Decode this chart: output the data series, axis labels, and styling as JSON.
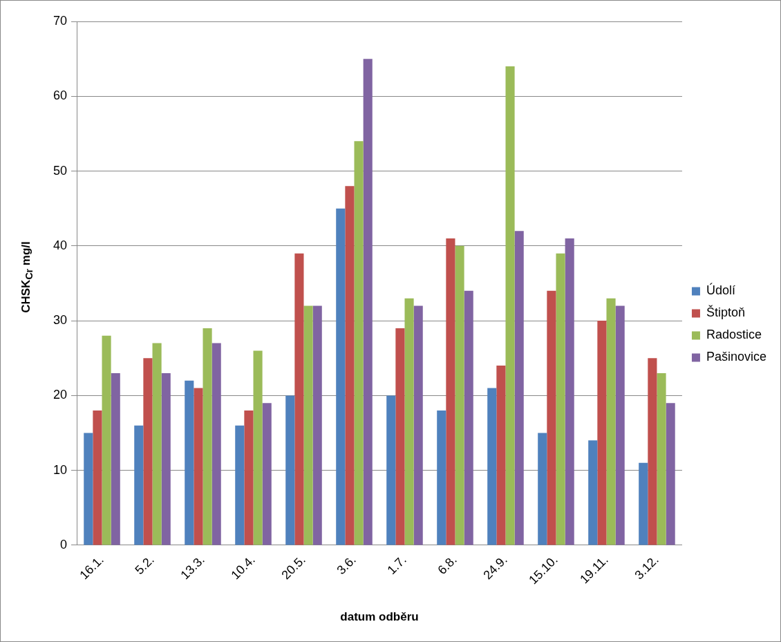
{
  "chart_data": {
    "type": "bar",
    "xlabel": "datum odběru",
    "ylabel": "CHSK$_{Cr}$ mg/l",
    "categories": [
      "16.1.",
      "5.2.",
      "13.3.",
      "10.4.",
      "20.5.",
      "3.6.",
      "1.7.",
      "6.8.",
      "24.9.",
      "15.10.",
      "19.11.",
      "3.12."
    ],
    "series": [
      {
        "name": "Údolí",
        "color": "#4f81bd",
        "values": [
          15,
          16,
          22,
          16,
          20,
          45,
          20,
          18,
          21,
          15,
          14,
          11
        ]
      },
      {
        "name": "Štiptoň",
        "color": "#c0504d",
        "values": [
          18,
          25,
          21,
          18,
          39,
          48,
          29,
          41,
          24,
          34,
          30,
          25
        ]
      },
      {
        "name": "Radostice",
        "color": "#9bbb59",
        "values": [
          28,
          27,
          29,
          26,
          32,
          54,
          33,
          40,
          64,
          39,
          33,
          23
        ]
      },
      {
        "name": "Pašinovice",
        "color": "#8064a2",
        "values": [
          23,
          23,
          27,
          19,
          32,
          65,
          32,
          34,
          42,
          41,
          32,
          19
        ]
      }
    ],
    "ylim": [
      0,
      70
    ],
    "yticks": [
      0,
      10,
      20,
      30,
      40,
      50,
      60,
      70
    ],
    "grid": "y",
    "legend": "right"
  }
}
